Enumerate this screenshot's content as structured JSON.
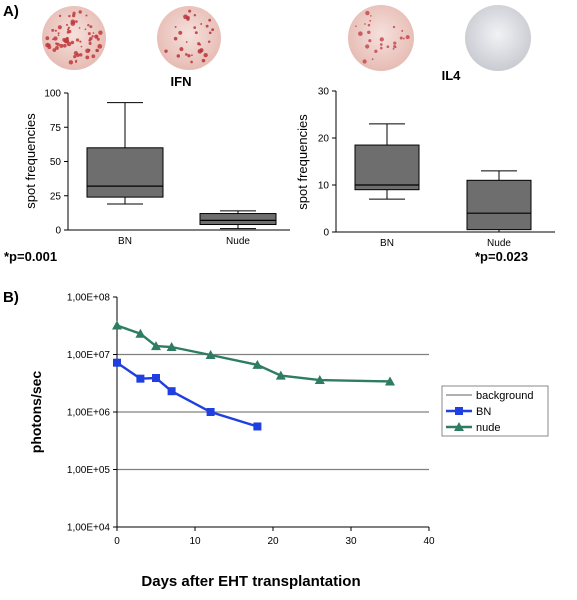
{
  "chart_data": [
    {
      "type": "box",
      "panel_label": "A)",
      "title": "IFN",
      "ylabel": "spot frequencies",
      "categories": [
        "BN",
        "Nude"
      ],
      "ylim": [
        0,
        100
      ],
      "yticks": [
        0,
        25,
        50,
        75,
        100
      ],
      "boxes": [
        {
          "category": "BN",
          "min": 19,
          "q1": 24,
          "median": 32,
          "q3": 60,
          "max": 93
        },
        {
          "category": "Nude",
          "min": 1,
          "q1": 4,
          "median": 7,
          "q3": 12,
          "max": 14
        }
      ],
      "annotation": "*p=0.001",
      "spot_images": [
        "red-spots-dense",
        "red-spots-moderate"
      ]
    },
    {
      "type": "box",
      "title": "IL4",
      "ylabel": "spot frequencies",
      "categories": [
        "BN",
        "Nude"
      ],
      "ylim": [
        0,
        30
      ],
      "yticks": [
        0,
        10,
        20,
        30
      ],
      "boxes": [
        {
          "category": "BN",
          "min": 7,
          "q1": 9,
          "median": 10,
          "q3": 18.5,
          "max": 23
        },
        {
          "category": "Nude",
          "min": 0,
          "q1": 0.5,
          "median": 4,
          "q3": 11,
          "max": 13
        }
      ],
      "annotation": "*p=0.023",
      "spot_images": [
        "red-spots-sparse",
        "blank-well"
      ]
    },
    {
      "type": "line",
      "panel_label": "B)",
      "xlabel": "Days after EHT transplantation",
      "ylabel": "photons/sec",
      "log_y": true,
      "xlim": [
        0,
        40
      ],
      "xticks": [
        0,
        10,
        20,
        30,
        40
      ],
      "ylim": [
        10000,
        100000000
      ],
      "yticks": [
        10000,
        100000,
        1000000,
        10000000,
        100000000
      ],
      "ytick_labels": [
        "1,00E+04",
        "1,00E+05",
        "1,00E+06",
        "1,00E+07",
        "1,00E+08"
      ],
      "legend_position": "right",
      "series": [
        {
          "name": "background",
          "color": "#808080",
          "marker": "none",
          "segments": [
            [
              [
                0,
                10000000
              ],
              [
                40,
                10000000
              ]
            ],
            [
              [
                0,
                1000000
              ],
              [
                40,
                1000000
              ]
            ],
            [
              [
                0,
                100000
              ],
              [
                40,
                100000
              ]
            ]
          ]
        },
        {
          "name": "BN",
          "color": "#1f3fe0",
          "marker": "square",
          "x": [
            0,
            3,
            5,
            7,
            12,
            18
          ],
          "y": [
            7200000,
            3800000,
            3900000,
            2300000,
            1000000,
            560000
          ]
        },
        {
          "name": "nude",
          "color": "#2e7d60",
          "marker": "triangle",
          "x": [
            0,
            3,
            5,
            7,
            12,
            18,
            21,
            26,
            35
          ],
          "y": [
            32000000,
            23000000,
            14000000,
            13500000,
            9800000,
            6600000,
            4300000,
            3600000,
            3400000
          ]
        }
      ]
    }
  ]
}
